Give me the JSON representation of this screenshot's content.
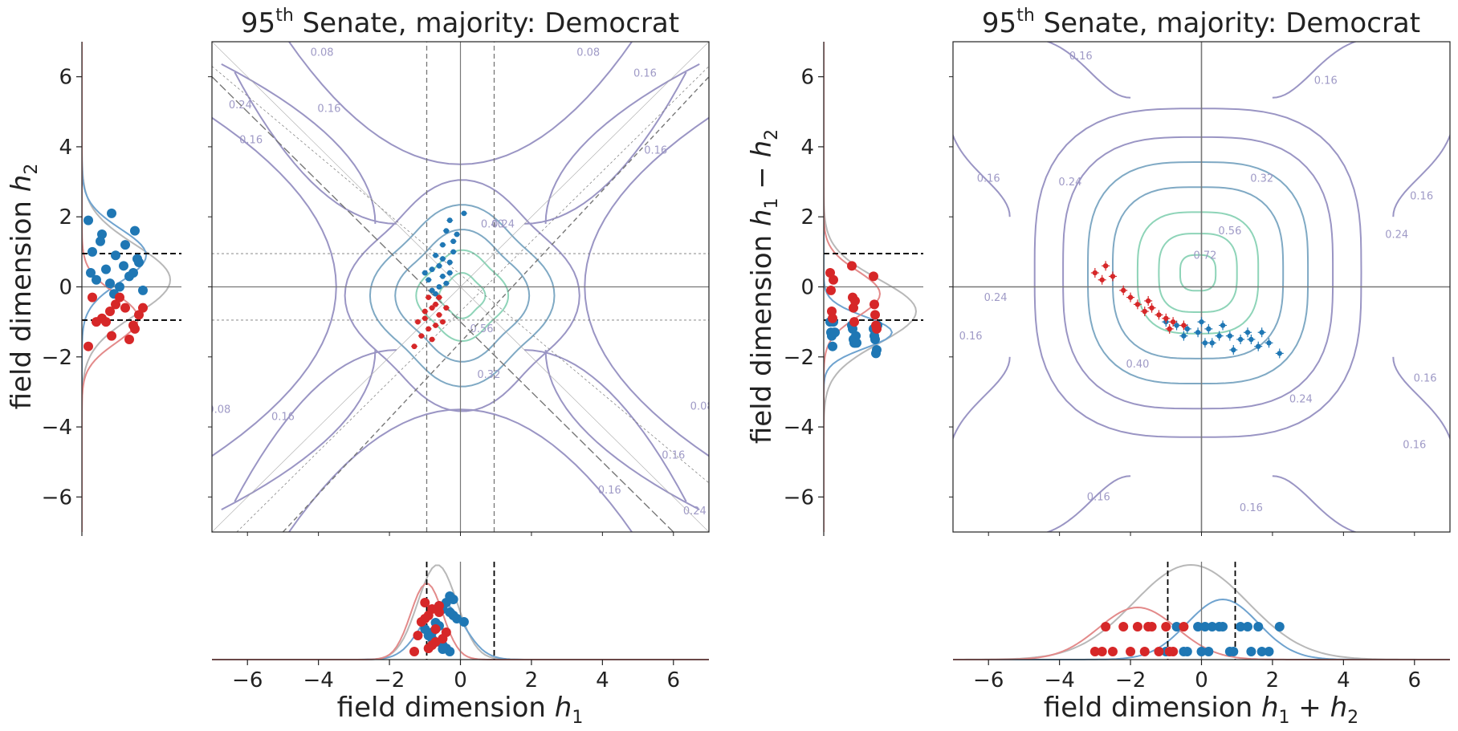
{
  "colors": {
    "democrat": "#1f77b4",
    "republican": "#d62728",
    "democrat_kde": "#6fa3cf",
    "republican_kde": "#e38a8a",
    "total_kde": "#b8b8b8",
    "contour_low": "#9a95c4",
    "contour_mid": "#7fa9c4",
    "contour_high": "#8ed4b8",
    "axis": "#222222",
    "guide": "#777777"
  },
  "chart_data": [
    {
      "type": "scatter",
      "panel": "left-main",
      "title_base": "95",
      "title_sup": "th",
      "title_rest": " Senate, majority: Democrat",
      "xlabel_prefix": "field dimension ",
      "xlabel_var": "h",
      "xlabel_sub": "1",
      "ylabel_prefix": "field dimension ",
      "ylabel_var": "h",
      "ylabel_sub": "2",
      "xlim": [
        -7,
        7
      ],
      "ylim": [
        -7,
        7
      ],
      "xticks": [
        -6,
        -4,
        -2,
        0,
        2,
        4,
        6
      ],
      "yticks": [
        -6,
        -4,
        -2,
        0,
        2,
        4,
        6
      ],
      "threshold_lines": [
        -0.95,
        0.95
      ],
      "contour_labels": [
        "0.08",
        "0.16",
        "0.24",
        "0.32",
        "0.40",
        "0.56",
        "0.08",
        "0.16",
        "0.16",
        "0.24",
        "0.08",
        "0.16",
        "0.16",
        "0.16",
        "0.08",
        "0.16",
        "0.24"
      ],
      "series": [
        {
          "party": "democrat",
          "points": [
            [
              -0.3,
              1.9
            ],
            [
              0.1,
              2.1
            ],
            [
              -0.4,
              1.6
            ],
            [
              -0.1,
              1.5
            ],
            [
              -0.5,
              1.2
            ],
            [
              -0.2,
              1.0
            ],
            [
              -0.7,
              0.9
            ],
            [
              -0.3,
              0.7
            ],
            [
              -0.8,
              0.5
            ],
            [
              -0.5,
              0.3
            ],
            [
              -0.9,
              0.2
            ],
            [
              -0.6,
              0.0
            ],
            [
              -0.8,
              -0.1
            ],
            [
              -0.4,
              0.1
            ],
            [
              -1.0,
              0.4
            ],
            [
              -0.2,
              1.3
            ],
            [
              -0.6,
              0.6
            ],
            [
              -0.3,
              0.4
            ],
            [
              -0.7,
              -0.2
            ],
            [
              -0.5,
              0.8
            ]
          ]
        },
        {
          "party": "republican",
          "points": [
            [
              -1.3,
              -1.7
            ],
            [
              -1.1,
              -1.4
            ],
            [
              -0.9,
              -1.2
            ],
            [
              -1.0,
              -0.9
            ],
            [
              -0.8,
              -0.6
            ],
            [
              -0.9,
              -0.3
            ],
            [
              -0.7,
              -0.5
            ],
            [
              -0.6,
              -0.8
            ],
            [
              -0.5,
              -1.0
            ],
            [
              -0.8,
              -1.5
            ],
            [
              -1.2,
              -1.0
            ],
            [
              -0.6,
              -0.3
            ],
            [
              -0.4,
              -0.6
            ],
            [
              -1.0,
              -0.7
            ],
            [
              -0.7,
              -1.1
            ]
          ]
        }
      ]
    },
    {
      "type": "scatter",
      "panel": "right-main",
      "title_base": "95",
      "title_sup": "th",
      "title_rest": " Senate, majority: Democrat",
      "xlabel_prefix": "field dimension ",
      "xlabel_expr": "h1+h2",
      "ylabel_prefix": "field dimension ",
      "ylabel_expr": "h1−h2",
      "xlim": [
        -7,
        7
      ],
      "ylim": [
        -7,
        7
      ],
      "xticks": [
        -6,
        -4,
        -2,
        0,
        2,
        4,
        6
      ],
      "yticks": [
        -6,
        -4,
        -2,
        0,
        2,
        4,
        6
      ],
      "threshold_lines": [
        -0.95,
        0.95
      ],
      "contour_labels": [
        "0.16",
        "0.16",
        "0.16",
        "0.24",
        "0.32",
        "0.56",
        "0.72",
        "0.40",
        "0.24",
        "0.24",
        "0.16",
        "0.16",
        "0.24",
        "0.16",
        "0.16",
        "0.16",
        "0.16"
      ],
      "series": [
        {
          "party": "democrat",
          "points": [
            [
              -1.0,
              -1.0
            ],
            [
              -0.7,
              -1.1
            ],
            [
              -0.4,
              -1.2
            ],
            [
              -0.1,
              -1.3
            ],
            [
              0.2,
              -1.2
            ],
            [
              0.5,
              -1.4
            ],
            [
              0.8,
              -1.4
            ],
            [
              1.1,
              -1.5
            ],
            [
              1.4,
              -1.5
            ],
            [
              1.6,
              -1.7
            ],
            [
              1.9,
              -1.6
            ],
            [
              2.2,
              -1.9
            ],
            [
              0.0,
              -1.0
            ],
            [
              0.3,
              -1.6
            ],
            [
              0.9,
              -1.8
            ],
            [
              1.3,
              -1.3
            ],
            [
              -0.5,
              -1.4
            ],
            [
              0.6,
              -1.1
            ],
            [
              1.7,
              -1.3
            ],
            [
              0.1,
              -1.6
            ]
          ]
        },
        {
          "party": "republican",
          "points": [
            [
              -3.0,
              0.4
            ],
            [
              -2.7,
              0.6
            ],
            [
              -2.5,
              0.3
            ],
            [
              -2.2,
              -0.1
            ],
            [
              -2.0,
              -0.3
            ],
            [
              -1.8,
              -0.5
            ],
            [
              -1.6,
              -0.7
            ],
            [
              -1.4,
              -0.6
            ],
            [
              -1.2,
              -0.8
            ],
            [
              -1.0,
              -0.9
            ],
            [
              -0.8,
              -1.0
            ],
            [
              -0.5,
              -1.1
            ],
            [
              -2.8,
              0.2
            ],
            [
              -1.5,
              -0.4
            ],
            [
              -0.9,
              -1.2
            ]
          ]
        }
      ]
    }
  ]
}
